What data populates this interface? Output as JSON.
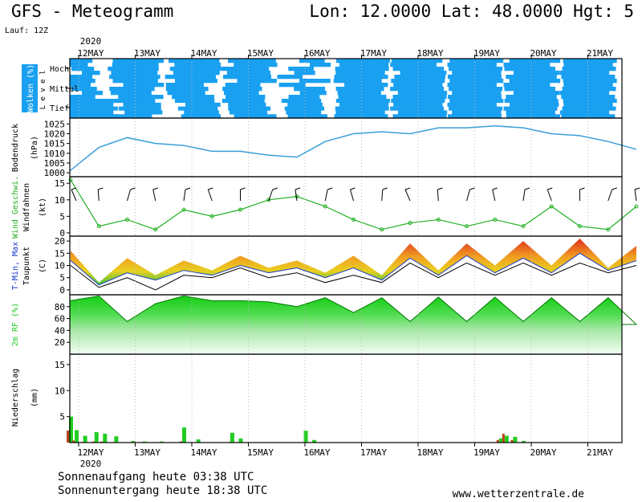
{
  "header": {
    "title": "GFS - Meteogramm",
    "coords": "Lon: 12.0000 Lat: 48.0000 Hgt: 5",
    "run": "Lauf: 12Z"
  },
  "footer": {
    "sunrise": "Sonnenaufgang heute 03:38 UTC",
    "sunset": "Sonnenuntergang heute 18:38 UTC",
    "credit": "www.wetterzentrale.de"
  },
  "chart_data": [
    {
      "type": "heatmap",
      "id": "clouds",
      "ylabel": "Wolken (%)",
      "level_label": "L e v e l",
      "levels": [
        "Hoch",
        "Mittel",
        "Tief"
      ],
      "color": "#1aa0f0",
      "x": [
        "12MAY",
        "13MAY",
        "14MAY",
        "15MAY",
        "16MAY",
        "17MAY",
        "18MAY",
        "19MAY",
        "20MAY",
        "21MAY"
      ],
      "hoch": [
        40,
        90,
        90,
        85,
        45,
        95,
        90,
        95,
        90,
        95
      ],
      "mittel": [
        45,
        80,
        75,
        70,
        55,
        85,
        95,
        95,
        90,
        95
      ],
      "tief": [
        85,
        75,
        70,
        75,
        70,
        95,
        95,
        95,
        95,
        95
      ]
    },
    {
      "type": "line",
      "id": "pressure",
      "ylabel": "Bodendruck",
      "unit": "(hPa)",
      "ylim": [
        998,
        1028
      ],
      "yticks": [
        1000,
        1005,
        1010,
        1015,
        1020,
        1025
      ],
      "color": "#3a9fd8",
      "x": [
        0,
        0.5,
        1,
        1.5,
        2,
        2.5,
        3,
        3.5,
        4,
        4.5,
        5,
        5.5,
        6,
        6.5,
        7,
        7.5,
        8,
        8.5,
        9,
        9.5,
        10
      ],
      "values": [
        1001,
        1013,
        1018,
        1015,
        1014,
        1011,
        1011,
        1009,
        1008,
        1016,
        1020,
        1021,
        1020,
        1023,
        1023,
        1024,
        1023,
        1020,
        1019,
        1016,
        1012
      ]
    },
    {
      "type": "line",
      "id": "wind",
      "ylabel": "Wind Geschwi.",
      "ylabel2": "Windfahnen",
      "unit": "(kt)",
      "ylim": [
        -1,
        17
      ],
      "yticks": [
        0,
        5,
        10,
        15
      ],
      "color": "#22b022",
      "x": [
        0,
        0.5,
        1,
        1.5,
        2,
        2.5,
        3,
        3.5,
        4,
        4.5,
        5,
        5.5,
        6,
        6.5,
        7,
        7.5,
        8,
        8.5,
        9,
        9.5,
        10
      ],
      "values": [
        16,
        2,
        4,
        1,
        7,
        5,
        7,
        10,
        11,
        8,
        4,
        1,
        3,
        4,
        2,
        4,
        2,
        8,
        2,
        1,
        8
      ]
    },
    {
      "type": "area",
      "id": "temperature",
      "ylabel": "T-Min, Max",
      "ylabel2": "Taupunkt",
      "unit": "(C)",
      "ylim": [
        -2,
        22
      ],
      "yticks": [
        0,
        5,
        10,
        15,
        20
      ],
      "x": [
        0,
        0.5,
        1,
        1.5,
        2,
        2.5,
        3,
        3.5,
        4,
        4.5,
        5,
        5.5,
        6,
        6.5,
        7,
        7.5,
        8,
        8.5,
        9,
        9.5,
        10
      ],
      "tmax": [
        16,
        3,
        13,
        6,
        12,
        8,
        14,
        9,
        12,
        7,
        14,
        6,
        19,
        8,
        19,
        10,
        20,
        10,
        21,
        9,
        18
      ],
      "tmin": [
        12,
        2,
        7,
        4,
        8,
        6,
        10,
        7,
        9,
        5,
        9,
        4,
        13,
        6,
        14,
        7,
        13,
        7,
        15,
        8,
        12
      ],
      "dewpoint": [
        10,
        1,
        5,
        0,
        6,
        5,
        9,
        5,
        7,
        3,
        6,
        3,
        11,
        5,
        11,
        6,
        11,
        6,
        11,
        7,
        10
      ],
      "colors": {
        "tmin": "#1a3cd0",
        "tmax": "#e02020",
        "dewpoint": "#000000"
      }
    },
    {
      "type": "area",
      "id": "humidity",
      "ylabel": "2m RF (%)",
      "ylim": [
        0,
        100
      ],
      "yticks": [
        20,
        40,
        60,
        80
      ],
      "color": "#22cc22",
      "x": [
        0,
        0.5,
        1,
        1.5,
        2,
        2.5,
        3,
        3.5,
        4,
        4.5,
        5,
        5.5,
        6,
        6.5,
        7,
        7.5,
        8,
        8.5,
        9,
        9.5,
        10
      ],
      "values": [
        90,
        98,
        55,
        85,
        98,
        90,
        90,
        88,
        80,
        95,
        70,
        95,
        55,
        96,
        55,
        96,
        55,
        95,
        55,
        95,
        50
      ]
    },
    {
      "type": "bar",
      "id": "precipitation",
      "ylabel": "Niederschlag",
      "unit": "(mm)",
      "ylim": [
        0,
        17
      ],
      "yticks": [
        5,
        10,
        15
      ],
      "colors": {
        "rain": "#22cc22",
        "convective": "#c0401a"
      },
      "x": [
        0.0,
        0.1,
        0.25,
        0.45,
        0.6,
        0.8,
        1.1,
        1.3,
        1.6,
        2.0,
        2.25,
        2.85,
        3.0,
        4.15,
        4.3,
        7.6,
        7.7,
        7.85,
        8.0
      ],
      "values": [
        5,
        2.4,
        1.3,
        2.0,
        1.7,
        1.2,
        0.3,
        0.2,
        0.2,
        2.9,
        0.6,
        1.9,
        0.8,
        2.3,
        0.5,
        0.8,
        1.3,
        1.1,
        0.3
      ],
      "convective": [
        2.3,
        0.4,
        0.1,
        0.2,
        0.2,
        0.1,
        0,
        0,
        0,
        0.2,
        0,
        0.1,
        0.1,
        0.1,
        0,
        0.5,
        1.7,
        0.5,
        0
      ]
    }
  ],
  "xaxis": {
    "days": [
      "12MAY",
      "13MAY",
      "14MAY",
      "15MAY",
      "16MAY",
      "17MAY",
      "18MAY",
      "19MAY",
      "20MAY",
      "21MAY"
    ],
    "year": "2020"
  }
}
